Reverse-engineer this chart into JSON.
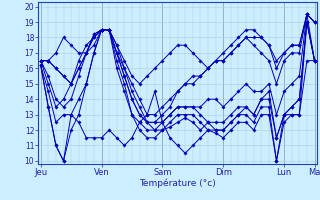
{
  "xlabel": "Température (°c)",
  "background_color": "#cceeff",
  "grid_major_color": "#88aabb",
  "grid_minor_color": "#aaccdd",
  "line_color": "#0000bb",
  "ylim": [
    9.8,
    20.3
  ],
  "yticks": [
    10,
    11,
    12,
    13,
    14,
    15,
    16,
    17,
    18,
    19,
    20
  ],
  "day_labels": [
    "Jeu",
    "Ven",
    "Sam",
    "Dim",
    "Lun",
    "Ma"
  ],
  "day_positions": [
    0,
    8,
    16,
    24,
    32,
    36
  ],
  "n_points": 37,
  "series": [
    [
      16.2,
      13.5,
      11.0,
      10.0,
      13.0,
      12.5,
      11.5,
      11.5,
      11.5,
      12.0,
      11.5,
      11.0,
      11.5,
      12.5,
      13.0,
      14.5,
      12.5,
      11.5,
      11.0,
      10.5,
      11.0,
      11.5,
      12.0,
      11.8,
      11.5,
      12.0,
      12.5,
      12.5,
      12.0,
      13.0,
      13.0,
      10.0,
      13.0,
      13.0,
      13.0,
      16.5,
      16.5
    ],
    [
      16.2,
      14.5,
      12.5,
      13.0,
      13.0,
      14.0,
      15.0,
      17.0,
      18.5,
      18.5,
      16.0,
      14.5,
      13.0,
      12.5,
      12.0,
      12.0,
      12.0,
      12.2,
      12.5,
      12.8,
      12.5,
      12.0,
      12.5,
      12.0,
      12.0,
      12.5,
      13.0,
      13.5,
      13.0,
      14.0,
      14.5,
      11.5,
      13.0,
      13.5,
      14.0,
      19.0,
      16.5
    ],
    [
      16.5,
      16.5,
      16.0,
      15.5,
      15.0,
      16.0,
      17.0,
      18.2,
      18.5,
      18.5,
      17.0,
      15.5,
      14.0,
      13.0,
      12.5,
      12.5,
      12.5,
      13.0,
      13.5,
      13.5,
      13.5,
      13.5,
      14.0,
      14.0,
      13.5,
      14.0,
      14.5,
      15.0,
      14.5,
      14.5,
      15.0,
      13.0,
      14.5,
      15.0,
      15.5,
      19.5,
      16.5
    ],
    [
      16.5,
      16.5,
      16.0,
      15.5,
      15.0,
      16.0,
      17.0,
      18.2,
      18.5,
      18.5,
      17.0,
      16.0,
      15.0,
      14.0,
      13.0,
      13.0,
      13.5,
      14.0,
      14.5,
      15.0,
      15.0,
      15.5,
      16.0,
      16.5,
      16.5,
      17.0,
      17.5,
      18.0,
      17.5,
      17.0,
      16.5,
      15.0,
      16.5,
      17.0,
      17.0,
      19.5,
      19.0
    ],
    [
      16.5,
      16.5,
      17.0,
      18.0,
      17.5,
      17.0,
      17.0,
      17.5,
      18.5,
      18.5,
      17.5,
      16.5,
      15.5,
      15.0,
      15.5,
      16.0,
      16.5,
      17.0,
      17.5,
      17.5,
      17.0,
      16.5,
      16.0,
      16.5,
      17.0,
      17.5,
      18.0,
      18.5,
      18.5,
      18.0,
      17.5,
      16.5,
      17.0,
      17.5,
      17.5,
      19.5,
      19.0
    ],
    [
      16.5,
      15.5,
      14.0,
      13.5,
      14.0,
      15.5,
      17.0,
      18.0,
      18.5,
      18.5,
      17.5,
      16.0,
      14.5,
      13.5,
      12.5,
      12.0,
      12.5,
      13.0,
      13.5,
      13.5,
      13.5,
      13.0,
      12.5,
      12.5,
      12.5,
      13.0,
      13.5,
      13.5,
      13.0,
      14.0,
      14.0,
      11.5,
      13.0,
      13.5,
      14.0,
      19.0,
      16.5
    ],
    [
      16.5,
      15.0,
      13.5,
      14.0,
      15.0,
      16.5,
      17.5,
      18.0,
      18.5,
      18.5,
      17.0,
      15.5,
      14.0,
      13.0,
      12.5,
      12.5,
      13.0,
      13.5,
      14.5,
      15.0,
      15.5,
      15.5,
      16.0,
      16.5,
      16.5,
      17.0,
      17.5,
      18.0,
      18.0,
      18.0,
      17.5,
      16.0,
      17.0,
      17.5,
      17.5,
      19.5,
      19.0
    ],
    [
      16.2,
      13.5,
      11.0,
      10.0,
      12.0,
      13.0,
      15.0,
      17.0,
      18.5,
      18.5,
      16.5,
      15.0,
      13.0,
      12.0,
      11.5,
      11.5,
      12.0,
      12.5,
      13.0,
      13.0,
      13.0,
      12.5,
      12.0,
      12.0,
      12.0,
      12.5,
      13.0,
      13.0,
      12.5,
      13.5,
      13.5,
      10.0,
      12.5,
      13.0,
      13.0,
      19.0,
      16.5
    ]
  ]
}
